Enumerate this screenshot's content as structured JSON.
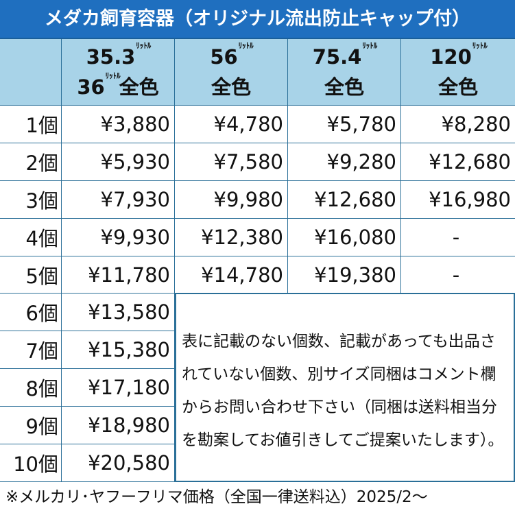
{
  "title": "メダカ飼育容器（オリジナル流出防止キャップ付）",
  "columns": [
    {
      "line1_num": "35.3",
      "line1_unit": "ﾘｯﾄﾙ",
      "line2_num": "36",
      "line2_unit": "ﾘｯﾄﾙ",
      "line2_text": "全色"
    },
    {
      "line1_num": "56",
      "line1_unit": "ﾘｯﾄﾙ",
      "line2_text": "全色"
    },
    {
      "line1_num": "75.4",
      "line1_unit": "ﾘｯﾄﾙ",
      "line2_text": "全色"
    },
    {
      "line1_num": "120",
      "line1_unit": "ﾘｯﾄﾙ",
      "line2_text": "全色"
    }
  ],
  "rows": [
    {
      "qty": "1個",
      "prices": [
        "¥3,880",
        "¥4,780",
        "¥5,780",
        "¥8,280"
      ]
    },
    {
      "qty": "2個",
      "prices": [
        "¥5,930",
        "¥7,580",
        "¥9,280",
        "¥12,680"
      ]
    },
    {
      "qty": "3個",
      "prices": [
        "¥7,930",
        "¥9,980",
        "¥12,680",
        "¥16,980"
      ]
    },
    {
      "qty": "4個",
      "prices": [
        "¥9,930",
        "¥12,380",
        "¥16,080",
        "-"
      ]
    },
    {
      "qty": "5個",
      "prices": [
        "¥11,780",
        "¥14,780",
        "¥19,380",
        "-"
      ]
    },
    {
      "qty": "6個",
      "prices": [
        "¥13,580"
      ]
    },
    {
      "qty": "7個",
      "prices": [
        "¥15,380"
      ]
    },
    {
      "qty": "8個",
      "prices": [
        "¥17,180"
      ]
    },
    {
      "qty": "9個",
      "prices": [
        "¥18,980"
      ]
    },
    {
      "qty": "10個",
      "prices": [
        "¥20,580"
      ]
    }
  ],
  "note": "表に記載のない個数、記載があっても出品されていない個数、別サイズ同梱はコメント欄からお問い合わせ下さい（同梱は送料相当分を勘案してお値引きしてご提案いたします）。",
  "footer": "※メルカリ･ヤフーフリマ価格（全国一律送料込）2025/2～",
  "colors": {
    "title_bg": "#1f6fbf",
    "header_bg": "#a8d3e8",
    "border": "#2a6f98"
  }
}
